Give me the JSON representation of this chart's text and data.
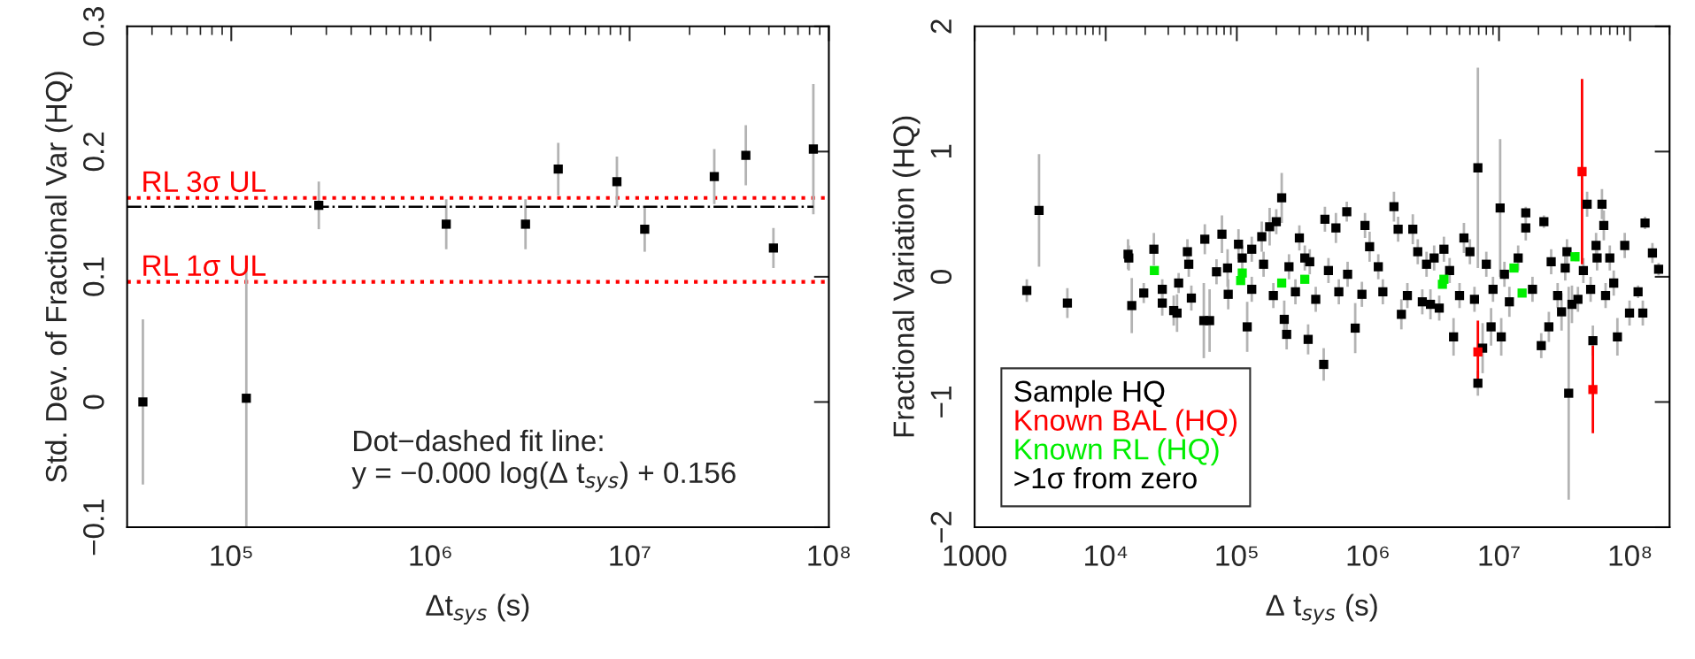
{
  "chart_data": [
    {
      "type": "scatter",
      "xlabel": "Δt$_{sys}$ (s)",
      "ylabel": "Std. Dev. of Fractional Var (HQ)",
      "log": "x",
      "xlim": [
        30000,
        100000000
      ],
      "ylim": [
        -0.1,
        0.3
      ],
      "xticks": [
        {
          "value": 100000,
          "label": "10⁵"
        },
        {
          "value": 1000000,
          "label": "10⁶"
        },
        {
          "value": 10000000,
          "label": "10⁷"
        },
        {
          "value": 100000000,
          "label": "10⁸"
        }
      ],
      "yticks": [
        {
          "value": -0.1,
          "label": "−0.1"
        },
        0,
        0.1,
        0.2,
        0.3
      ],
      "series": [
        {
          "marker": "square",
          "color": "#000000",
          "x": [
            36000,
            119000,
            275000,
            1200000,
            3000000,
            4380000,
            8630000,
            11900000,
            26600000,
            38300000,
            52700000,
            83600000
          ],
          "values": [
            0.0,
            0.003,
            0.157,
            0.142,
            0.142,
            0.186,
            0.176,
            0.138,
            0.18,
            0.197,
            0.123,
            0.202
          ],
          "errors": [
            0.066,
            0.103,
            0.019,
            0.02,
            0.02,
            0.021,
            0.02,
            0.018,
            0.022,
            0.024,
            0.016,
            0.052
          ]
        },
        {
          "type": "line",
          "color": "#000000",
          "line_style": "dashdot",
          "x": [
            30000,
            83600000
          ],
          "values": [
            0.156,
            0.156
          ]
        }
      ],
      "ref_lines": [
        {
          "axis": "y",
          "value": 0.163,
          "label": "RL 3σ UL",
          "color": "#ff0000",
          "line_style": "dotted"
        },
        {
          "axis": "y",
          "value": 0.096,
          "label": "RL 1σ UL",
          "color": "#ff0000",
          "line_style": "dotted"
        }
      ],
      "annotations": [
        "Dot−dashed fit line:",
        "y = −0.000 log(Δ t$_{sys}$) + 0.156"
      ]
    },
    {
      "type": "scatter",
      "xlabel": "Δ t$_{sys}$ (s)",
      "ylabel": "Fractional Variation (HQ)",
      "log": "x",
      "marker": "square",
      "legend": "bottom left",
      "xlim": [
        1000,
        200000000
      ],
      "ylim": [
        -2,
        2
      ],
      "xticks": [
        {
          "value": 1000,
          "label": "1000"
        },
        {
          "value": 10000,
          "label": "10⁴"
        },
        {
          "value": 100000,
          "label": "10⁵"
        },
        {
          "value": 1000000,
          "label": "10⁶"
        },
        {
          "value": 10000000,
          "label": "10⁷"
        },
        {
          "value": 100000000,
          "label": "10⁸"
        }
      ],
      "yticks": [
        {
          "value": -2,
          "label": "−2"
        },
        {
          "value": -1,
          "label": "−1"
        },
        0,
        1,
        2
      ],
      "series": [
        {
          "name": "Sample HQ",
          "color": "#000000",
          "x": [
            2500,
            3100,
            5100,
            14800,
            15000,
            15800,
            19500,
            23300,
            27000,
            27000,
            33000,
            35000,
            36000,
            42000,
            43000,
            45000,
            56000,
            57000,
            62000,
            70000,
            77000,
            85000,
            86000,
            103000,
            110000,
            120000,
            130000,
            130000,
            155000,
            160000,
            178000,
            190000,
            200000,
            220000,
            230000,
            240000,
            250000,
            280000,
            300000,
            330000,
            350000,
            360000,
            400000,
            460000,
            470000,
            500000,
            570000,
            600000,
            690000,
            700000,
            800000,
            900000,
            950000,
            1030000,
            1200000,
            1300000,
            1580000,
            1700000,
            1800000,
            2000000,
            2200000,
            2400000,
            2600000,
            2800000,
            3000000,
            3200000,
            3500000,
            3800000,
            4200000,
            4500000,
            5000000,
            5400000,
            6000000,
            6500000,
            6900000,
            6900000,
            7500000,
            8000000,
            8700000,
            9000000,
            10200000,
            10400000,
            11000000,
            12000000,
            14000000,
            16000000,
            16000000,
            18000000,
            21000000,
            22000000,
            24000000,
            25000000,
            28000000,
            30000000,
            32000000,
            33000000,
            34000000,
            36000000,
            40000000,
            44000000,
            47000000,
            50000000,
            52000000,
            55000000,
            56000000,
            61000000,
            63000000,
            65000000,
            70000000,
            75000000,
            80000000,
            91000000,
            99000000,
            115000000,
            125000000,
            130000000,
            148000000,
            165000000
          ],
          "values": [
            -0.11,
            0.53,
            -0.21,
            0.18,
            0.15,
            -0.23,
            -0.13,
            0.22,
            -0.1,
            -0.21,
            -0.27,
            -0.29,
            -0.05,
            0.2,
            0.1,
            -0.17,
            -0.35,
            0.3,
            -0.35,
            0.04,
            0.34,
            0.07,
            -0.14,
            0.26,
            0.15,
            -0.4,
            0.22,
            -0.1,
            0.32,
            0.1,
            0.4,
            -0.15,
            0.44,
            0.63,
            -0.34,
            -0.46,
            0.08,
            -0.12,
            0.31,
            0.15,
            -0.5,
            0.12,
            -0.18,
            -0.7,
            0.46,
            0.05,
            0.39,
            -0.12,
            0.52,
            0.02,
            -0.41,
            -0.14,
            0.41,
            0.24,
            0.08,
            -0.12,
            0.56,
            0.38,
            -0.3,
            -0.15,
            0.38,
            0.2,
            -0.2,
            0.1,
            -0.22,
            0.15,
            -0.25,
            0.22,
            0.05,
            -0.48,
            -0.15,
            0.31,
            0.2,
            -0.18,
            0.87,
            -0.85,
            -0.57,
            0.1,
            -0.4,
            -0.1,
            0.55,
            -0.48,
            0.02,
            -0.2,
            0.15,
            0.51,
            0.39,
            -0.1,
            -0.55,
            0.44,
            -0.4,
            0.12,
            -0.15,
            -0.28,
            0.07,
            0.2,
            -0.93,
            -0.22,
            -0.18,
            0.05,
            0.58,
            -0.1,
            -0.51,
            0.25,
            0.15,
            0.58,
            0.41,
            -0.15,
            0.15,
            -0.05,
            -0.48,
            0.25,
            -0.29,
            -0.12,
            -0.29,
            0.43,
            0.19,
            0.06
          ],
          "errors": [
            0.09,
            0.45,
            0.12,
            0.12,
            0.1,
            0.22,
            0.08,
            0.13,
            0.08,
            0.1,
            0.12,
            0.15,
            0.08,
            0.1,
            0.1,
            0.1,
            0.3,
            0.12,
            0.25,
            0.1,
            0.15,
            0.15,
            0.12,
            0.12,
            0.1,
            0.2,
            0.1,
            0.1,
            0.12,
            0.1,
            0.15,
            0.1,
            0.1,
            0.2,
            0.15,
            0.12,
            0.1,
            0.1,
            0.1,
            0.1,
            0.12,
            0.1,
            0.1,
            0.13,
            0.1,
            0.1,
            0.12,
            0.1,
            0.08,
            0.1,
            0.2,
            0.1,
            0.1,
            0.12,
            0.1,
            0.1,
            0.12,
            0.1,
            0.12,
            0.1,
            0.12,
            0.1,
            0.1,
            0.1,
            0.12,
            0.1,
            0.1,
            0.1,
            0.1,
            0.15,
            0.1,
            0.12,
            0.1,
            0.1,
            0.8,
            0.1,
            0.2,
            0.1,
            0.15,
            0.1,
            0.55,
            0.15,
            0.1,
            0.12,
            0.1,
            0.05,
            0.1,
            0.1,
            0.1,
            0.05,
            0.12,
            0.1,
            0.1,
            0.15,
            0.1,
            0.1,
            0.85,
            0.15,
            0.1,
            0.1,
            0.1,
            0.1,
            0.12,
            0.1,
            0.1,
            0.12,
            0.12,
            0.1,
            0.1,
            0.1,
            0.15,
            0.1,
            0.1,
            0.05,
            0.1,
            0.05,
            0.08,
            0.05
          ]
        },
        {
          "name": "Known BAL (HQ)",
          "color": "#ff0000",
          "x": [
            6900000,
            43000000,
            52000000
          ],
          "values": [
            -0.6,
            0.84,
            -0.9
          ],
          "errors": [
            0.25,
            0.74,
            0.35
          ]
        },
        {
          "name": "Known RL (HQ)",
          "color": "#00ee00",
          "x": [
            23500,
            107000,
            110000,
            220000,
            330000,
            3700000,
            3800000,
            13000000,
            15000000,
            38000000
          ],
          "values": [
            0.05,
            -0.03,
            0.03,
            -0.05,
            -0.02,
            -0.06,
            -0.02,
            0.07,
            -0.13,
            0.16
          ]
        }
      ],
      "annotations": [
        ">1σ from zero"
      ]
    }
  ]
}
